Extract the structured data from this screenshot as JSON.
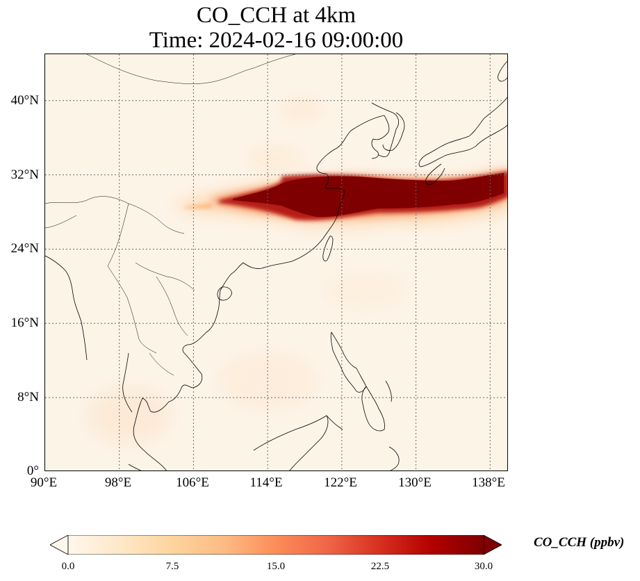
{
  "title": {
    "line1": "CO_CCH at 4km",
    "line2": "Time: 2024-02-16 09:00:00"
  },
  "map": {
    "lat_ticks": [
      "40°N",
      "32°N",
      "24°N",
      "16°N",
      "8°N",
      "0°"
    ],
    "lon_ticks": [
      "90°E",
      "98°E",
      "106°E",
      "114°E",
      "122°E",
      "130°E",
      "138°E"
    ],
    "lat_range": [
      0,
      45
    ],
    "lon_range": [
      90,
      140
    ],
    "gridlines": "dotted",
    "colormap": "OrRd",
    "plume_color": "#7f0000",
    "background_color": "#fdf4e8"
  },
  "colorbar": {
    "label": "CO_CCH (ppbv)",
    "ticks": [
      "0.0",
      "7.5",
      "15.0",
      "22.5",
      "30.0"
    ],
    "range": [
      0.0,
      30.0
    ],
    "extend": "both",
    "colors": [
      "#fff7ec",
      "#fee8c8",
      "#fdd49e",
      "#fdbb84",
      "#fc8d59",
      "#ef6548",
      "#d7301f",
      "#b30000",
      "#7f0000"
    ]
  }
}
